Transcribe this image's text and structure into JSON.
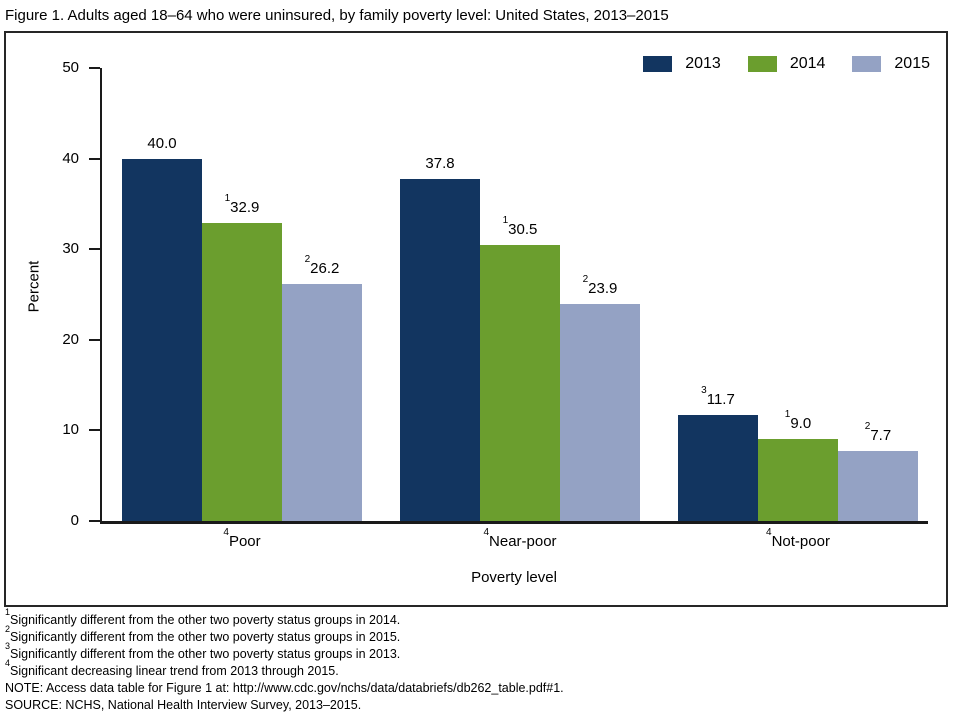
{
  "title": "Figure 1. Adults aged 18–64 who were uninsured, by family poverty level: United States, 2013–2015",
  "chart_data": {
    "type": "bar",
    "title": "Adults aged 18–64 who were uninsured, by family poverty level: United States, 2013–2015",
    "categories": [
      "Poor",
      "Near-poor",
      "Not-poor"
    ],
    "category_sups": [
      "4",
      "4",
      "4"
    ],
    "series": [
      {
        "name": "2013",
        "color": "#123560",
        "values": [
          40.0,
          37.8,
          11.7
        ],
        "sups": [
          "",
          "",
          "3"
        ]
      },
      {
        "name": "2014",
        "color": "#6B9E2E",
        "values": [
          32.9,
          30.5,
          9.0
        ],
        "sups": [
          "1",
          "1",
          "1"
        ]
      },
      {
        "name": "2015",
        "color": "#94A2C4",
        "values": [
          26.2,
          23.9,
          7.7
        ],
        "sups": [
          "2",
          "2",
          "2"
        ]
      }
    ],
    "xlabel": "Poverty level",
    "ylabel": "Percent",
    "ylim": [
      0,
      50
    ],
    "yticks": [
      0,
      10,
      20,
      30,
      40,
      50
    ],
    "grid": false,
    "legend_position": "top-right",
    "value_label_decimals": 1
  },
  "footnotes": [
    {
      "sup": "1",
      "text": "Significantly different from the other two poverty status groups in 2014."
    },
    {
      "sup": "2",
      "text": "Significantly different from the other two poverty status groups in 2015."
    },
    {
      "sup": "3",
      "text": "Significantly different from the other two poverty status groups in 2013."
    },
    {
      "sup": "4",
      "text": "Significant decreasing linear trend from 2013 through 2015."
    },
    {
      "sup": "",
      "text": "NOTE: Access data table for Figure 1 at: http://www.cdc.gov/nchs/data/databriefs/db262_table.pdf#1."
    },
    {
      "sup": "",
      "text": "SOURCE: NCHS, National Health Interview Survey, 2013–2015."
    }
  ]
}
